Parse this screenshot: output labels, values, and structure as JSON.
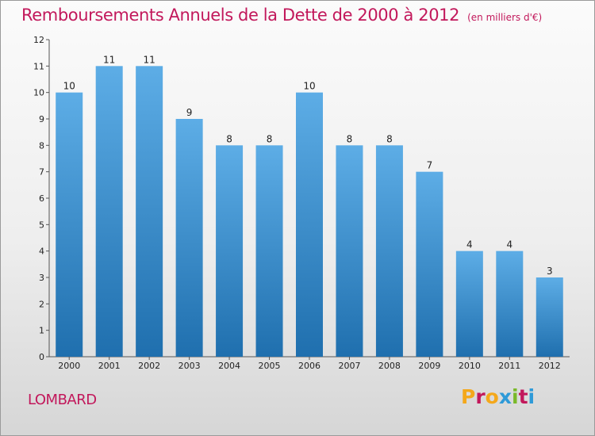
{
  "header": {
    "title": "Remboursements Annuels de la Dette de 2000 à 2012",
    "unit": "(en milliers d'€)"
  },
  "footer": {
    "commune": "LOMBARD",
    "logo_text": "Proxiti"
  },
  "colors": {
    "title": "#c2185b",
    "bar_top": "#5dade6",
    "bar_bottom": "#1f6fae",
    "logo": [
      "#f4a81b",
      "#c2185b",
      "#f4a81b",
      "#2e9ad8",
      "#7ab929",
      "#c2185b",
      "#2e9ad8"
    ]
  },
  "chart_data": {
    "type": "bar",
    "categories": [
      "2000",
      "2001",
      "2002",
      "2003",
      "2004",
      "2005",
      "2006",
      "2007",
      "2008",
      "2009",
      "2010",
      "2011",
      "2012"
    ],
    "values": [
      10,
      11,
      11,
      9,
      8,
      8,
      10,
      8,
      8,
      7,
      4,
      4,
      3
    ],
    "title": "Remboursements Annuels de la Dette de 2000 à 2012",
    "ylabel": "",
    "xlabel": "",
    "ylim": [
      0,
      12
    ],
    "yticks": [
      0,
      1,
      2,
      3,
      4,
      5,
      6,
      7,
      8,
      9,
      10,
      11,
      12
    ],
    "grid": false,
    "data_labels": true
  }
}
